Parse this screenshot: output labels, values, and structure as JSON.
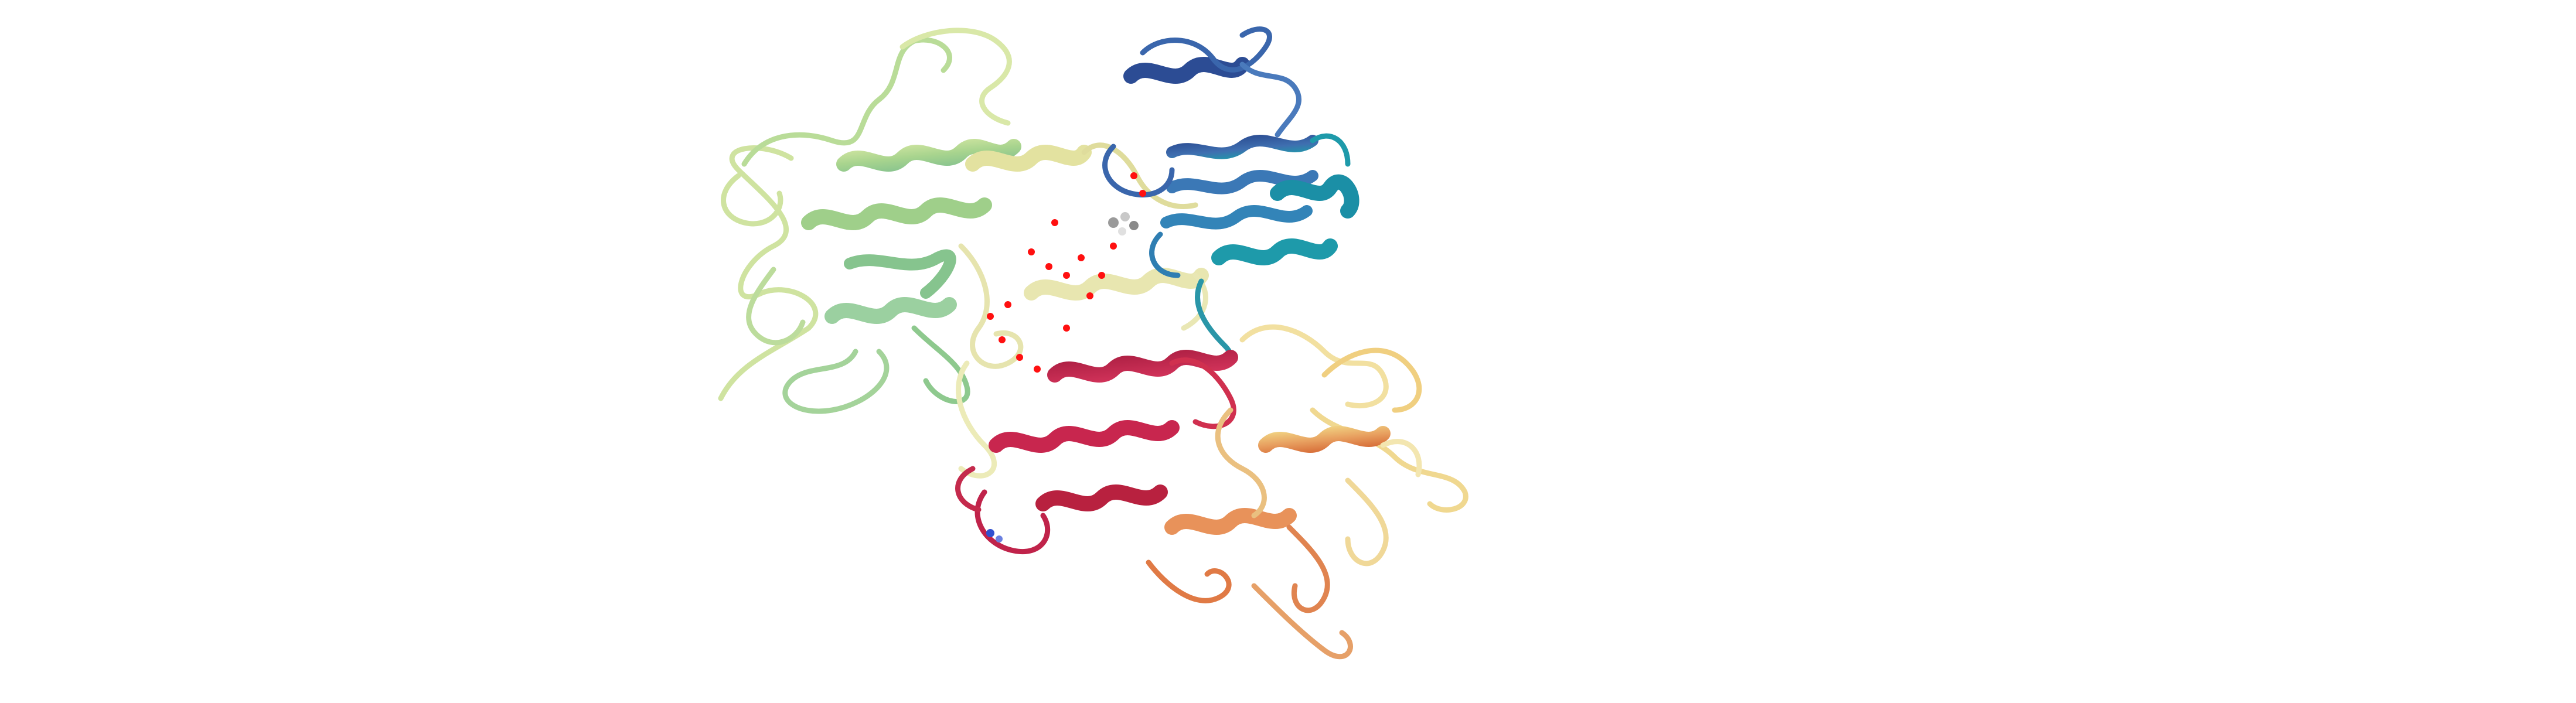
{
  "scene": {
    "background_color": "#ffffff",
    "representation": "ribbon",
    "color_scheme": "rainbow"
  },
  "domains": [
    {
      "name": "domain-green",
      "color": "#a8d48e",
      "accent": "#7fbf8f"
    },
    {
      "name": "domain-blue",
      "color": "#3f6fb0",
      "accent": "#1e9aaa"
    },
    {
      "name": "domain-yellow",
      "color": "#ecebb0",
      "accent": "#d8d49a"
    },
    {
      "name": "domain-red",
      "color": "#c8264e",
      "accent": "#a81d40"
    },
    {
      "name": "domain-orange",
      "color": "#e8925a",
      "accent": "#f0cf80"
    }
  ],
  "ligands": {
    "water_color": "#ff1010",
    "small_molecule_color": "#9a9a9a",
    "nitrogen_color": "#3050d0"
  }
}
